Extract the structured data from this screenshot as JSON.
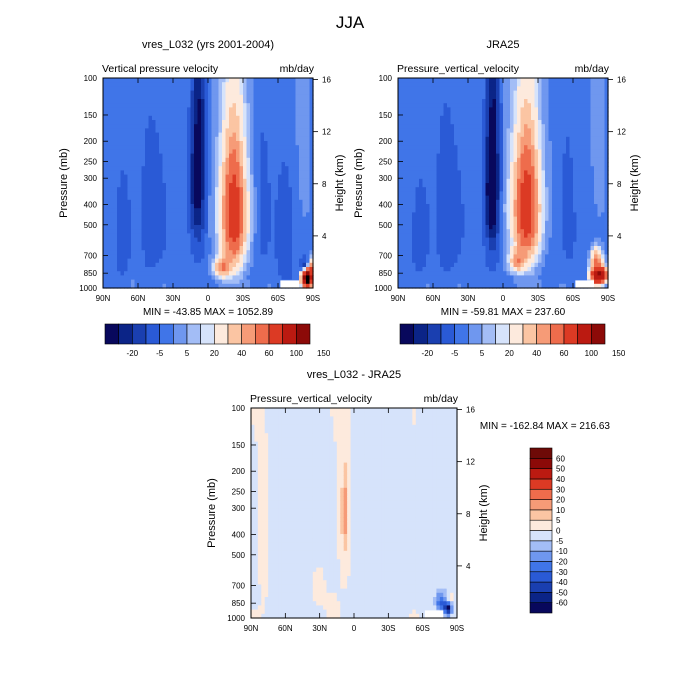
{
  "figure_title": "JJA",
  "chart_data": [
    {
      "id": "model",
      "type": "heatmap",
      "title": "vres_L032 (yrs 2001-2004)",
      "left_string": "Vertical pressure velocity",
      "right_string": "mb/day",
      "ylabel": "Pressure (mb)",
      "ylabel_right": "Height (km)",
      "x_ticks": [
        "90N",
        "60N",
        "30N",
        "0",
        "30S",
        "60S",
        "90S"
      ],
      "x_range": [
        90,
        -90
      ],
      "y_ticks": [
        "100",
        "150",
        "200",
        "250",
        "300",
        "400",
        "500",
        "700",
        "850",
        "1000"
      ],
      "y_ticks_right": [
        "16",
        "12",
        "8",
        "4"
      ],
      "y_range_mb": [
        100,
        1000
      ],
      "stats": "MIN = -43.85  MAX = 1052.89",
      "min": -43.85,
      "max": 1052.89,
      "colorbar_orientation": "horizontal",
      "colorbar_labels": [
        "-20",
        "-5",
        "5",
        "20",
        "40",
        "60",
        "100",
        "150"
      ],
      "features": [
        {
          "lat": 7,
          "p": 250,
          "wlat": 5,
          "wp": 650,
          "value": -38
        },
        {
          "lat": 12,
          "p": 320,
          "wlat": 4,
          "wp": 450,
          "value": -25
        },
        {
          "lat": -22,
          "p": 450,
          "wlat": 12,
          "wp": 650,
          "value": 58
        },
        {
          "lat": -22,
          "p": 450,
          "wlat": 6,
          "wp": 420,
          "value": 35
        },
        {
          "lat": -12,
          "p": 800,
          "wlat": 7,
          "wp": 180,
          "value": 40
        },
        {
          "lat": 45,
          "p": 450,
          "wlat": 10,
          "wp": 550,
          "value": -10
        },
        {
          "lat": 25,
          "p": 600,
          "wlat": 6,
          "wp": 350,
          "value": 4
        },
        {
          "lat": 72,
          "p": 550,
          "wlat": 6,
          "wp": 550,
          "value": -12
        },
        {
          "lat": -48,
          "p": 400,
          "wlat": 6,
          "wp": 600,
          "value": -8
        },
        {
          "lat": -65,
          "p": 500,
          "wlat": 7,
          "wp": 500,
          "value": -9
        },
        {
          "lat": -85,
          "p": 900,
          "wlat": 4,
          "wp": 150,
          "value": 260
        },
        {
          "lat": -83,
          "p": 800,
          "wlat": 3,
          "wp": 130,
          "value": -35
        },
        {
          "lat": -88,
          "p": 800,
          "wlat": 2,
          "wp": 150,
          "value": 45
        }
      ]
    },
    {
      "id": "reanalysis",
      "type": "heatmap",
      "title": "JRA25",
      "left_string": "Pressure_vertical_velocity",
      "right_string": "mb/day",
      "ylabel": "Pressure (mb)",
      "ylabel_right": "Height (km)",
      "x_ticks": [
        "90N",
        "60N",
        "30N",
        "0",
        "30S",
        "60S",
        "90S"
      ],
      "x_range": [
        90,
        -90
      ],
      "y_ticks": [
        "100",
        "150",
        "200",
        "250",
        "300",
        "400",
        "500",
        "700",
        "850",
        "1000"
      ],
      "y_ticks_right": [
        "16",
        "12",
        "8",
        "4"
      ],
      "y_range_mb": [
        100,
        1000
      ],
      "stats": "MIN = -59.81  MAX = 237.60",
      "min": -59.81,
      "max": 237.6,
      "colorbar_orientation": "horizontal",
      "colorbar_labels": [
        "-20",
        "-5",
        "5",
        "20",
        "40",
        "60",
        "100",
        "150"
      ],
      "features": [
        {
          "lat": 8,
          "p": 300,
          "wlat": 5,
          "wp": 650,
          "value": -45
        },
        {
          "lat": 12,
          "p": 350,
          "wlat": 4,
          "wp": 450,
          "value": -25
        },
        {
          "lat": -20,
          "p": 420,
          "wlat": 13,
          "wp": 600,
          "value": 55
        },
        {
          "lat": -20,
          "p": 420,
          "wlat": 7,
          "wp": 420,
          "value": 35
        },
        {
          "lat": -12,
          "p": 750,
          "wlat": 7,
          "wp": 180,
          "value": 35
        },
        {
          "lat": 45,
          "p": 450,
          "wlat": 10,
          "wp": 550,
          "value": -12
        },
        {
          "lat": 70,
          "p": 550,
          "wlat": 7,
          "wp": 550,
          "value": -10
        },
        {
          "lat": 25,
          "p": 600,
          "wlat": 6,
          "wp": 300,
          "value": 4
        },
        {
          "lat": -55,
          "p": 400,
          "wlat": 6,
          "wp": 600,
          "value": -8
        },
        {
          "lat": -82,
          "p": 870,
          "wlat": 6,
          "wp": 150,
          "value": 170
        },
        {
          "lat": -80,
          "p": 720,
          "wlat": 5,
          "wp": 150,
          "value": 45
        }
      ]
    },
    {
      "id": "difference",
      "type": "heatmap",
      "title": "vres_L032 - JRA25",
      "left_string": "Pressure_vertical_velocity",
      "right_string": "mb/day",
      "ylabel": "Pressure (mb)",
      "ylabel_right": "Height (km)",
      "x_ticks": [
        "90N",
        "60N",
        "30N",
        "0",
        "30S",
        "60S",
        "90S"
      ],
      "x_range": [
        90,
        -90
      ],
      "y_ticks": [
        "100",
        "150",
        "200",
        "250",
        "300",
        "400",
        "500",
        "700",
        "850",
        "1000"
      ],
      "y_ticks_right": [
        "16",
        "12",
        "8",
        "4"
      ],
      "y_range_mb": [
        100,
        1000
      ],
      "stats": "MIN = -162.84  MAX = 216.63",
      "min": -162.84,
      "max": 216.63,
      "colorbar_orientation": "vertical",
      "colorbar_labels": [
        "60",
        "50",
        "40",
        "30",
        "20",
        "10",
        "5",
        "0",
        "-5",
        "-10",
        "-20",
        "-30",
        "-40",
        "-50",
        "-60"
      ],
      "features": [
        {
          "lat": 8,
          "p": 350,
          "wlat": 4,
          "wp": 500,
          "value": 8
        },
        {
          "lat": 8,
          "p": 310,
          "wlat": 2,
          "wp": 140,
          "value": 13
        },
        {
          "lat": -25,
          "p": 400,
          "wlat": 10,
          "wp": 700,
          "value": 2
        },
        {
          "lat": 55,
          "p": 500,
          "wlat": 5,
          "wp": 400,
          "value": 2
        },
        {
          "lat": 78,
          "p": 500,
          "wlat": 5,
          "wp": 600,
          "value": 2
        },
        {
          "lat": 32,
          "p": 700,
          "wlat": 6,
          "wp": 300,
          "value": 3
        },
        {
          "lat": 20,
          "p": 850,
          "wlat": 4,
          "wp": 150,
          "value": 3
        },
        {
          "lat": -3,
          "p": 450,
          "wlat": 3,
          "wp": 500,
          "value": -3
        },
        {
          "lat": 50,
          "p": 700,
          "wlat": 4,
          "wp": 250,
          "value": -3
        },
        {
          "lat": -76,
          "p": 850,
          "wlat": 4,
          "wp": 180,
          "value": -30
        },
        {
          "lat": -82,
          "p": 900,
          "wlat": 3,
          "wp": 120,
          "value": -60
        },
        {
          "lat": -84,
          "p": 820,
          "wlat": 2,
          "wp": 80,
          "value": 15
        }
      ]
    }
  ],
  "colors": {
    "seq_colorbar": [
      "#08085c",
      "#0b2487",
      "#1a3fb0",
      "#2a5ad6",
      "#4075e8",
      "#6f97ef",
      "#a3bdf6",
      "#d6e3fb",
      "#fdeadd",
      "#fbc5a3",
      "#f69b77",
      "#ee6c4c",
      "#dc3a24",
      "#bb1a11",
      "#8c0a08"
    ],
    "diff_colorbar": [
      "#08085c",
      "#0b2487",
      "#1a3fb0",
      "#2a5ad6",
      "#4075e8",
      "#6f97ef",
      "#a3bdf6",
      "#d6e3fb",
      "#fdeadd",
      "#fbc5a3",
      "#f69b77",
      "#ee6c4c",
      "#dc3a24",
      "#bb1a11",
      "#8c0a08",
      "#6e0a07"
    ]
  }
}
